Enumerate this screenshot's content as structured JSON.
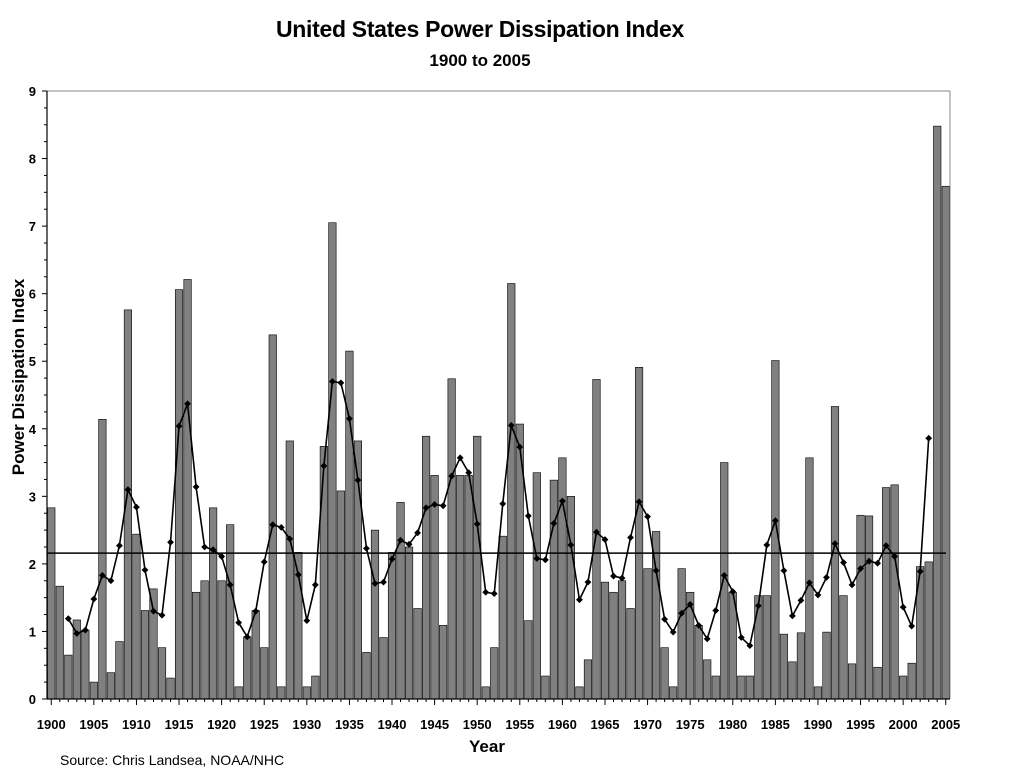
{
  "chart_data": {
    "type": "bar",
    "title": "United States Power Dissipation Index",
    "subtitle": "1900 to 2005",
    "xlabel": "Year",
    "ylabel": "Power Dissipation Index",
    "source": "Source:  Chris Landsea, NOAA/NHC",
    "xlim": [
      1900,
      2005
    ],
    "ylim": [
      0,
      9
    ],
    "grid": false,
    "legend": "none",
    "x_ticks": [
      "1900",
      "1905",
      "1910",
      "1915",
      "1920",
      "1925",
      "1930",
      "1935",
      "1940",
      "1945",
      "1950",
      "1955",
      "1960",
      "1965",
      "1970",
      "1975",
      "1980",
      "1985",
      "1990",
      "1995",
      "2000",
      "2005"
    ],
    "y_ticks": [
      "0",
      "1",
      "2",
      "3",
      "4",
      "5",
      "6",
      "7",
      "8",
      "9"
    ],
    "years": [
      1900,
      1901,
      1902,
      1903,
      1904,
      1905,
      1906,
      1907,
      1908,
      1909,
      1910,
      1911,
      1912,
      1913,
      1914,
      1915,
      1916,
      1917,
      1918,
      1919,
      1920,
      1921,
      1922,
      1923,
      1924,
      1925,
      1926,
      1927,
      1928,
      1929,
      1930,
      1931,
      1932,
      1933,
      1934,
      1935,
      1936,
      1937,
      1938,
      1939,
      1940,
      1941,
      1942,
      1943,
      1944,
      1945,
      1946,
      1947,
      1948,
      1949,
      1950,
      1951,
      1952,
      1953,
      1954,
      1955,
      1956,
      1957,
      1958,
      1959,
      1960,
      1961,
      1962,
      1963,
      1964,
      1965,
      1966,
      1967,
      1968,
      1969,
      1970,
      1971,
      1972,
      1973,
      1974,
      1975,
      1976,
      1977,
      1978,
      1979,
      1980,
      1981,
      1982,
      1983,
      1984,
      1985,
      1986,
      1987,
      1988,
      1989,
      1990,
      1991,
      1992,
      1993,
      1994,
      1995,
      1996,
      1997,
      1998,
      1999,
      2000,
      2001,
      2002,
      2003,
      2004,
      2005
    ],
    "series": [
      {
        "type": "bar",
        "color": "#808080",
        "values": [
          2.83,
          1.67,
          0.65,
          1.17,
          1.02,
          0.25,
          4.14,
          0.39,
          0.85,
          5.76,
          2.44,
          1.31,
          1.63,
          0.76,
          0.31,
          6.06,
          6.21,
          1.58,
          1.75,
          2.83,
          1.75,
          2.58,
          0.18,
          0.92,
          1.31,
          0.76,
          5.39,
          0.18,
          3.82,
          2.17,
          0.18,
          0.34,
          3.74,
          7.05,
          3.08,
          5.15,
          3.82,
          0.69,
          2.5,
          0.91,
          2.17,
          2.91,
          2.25,
          1.34,
          3.89,
          3.31,
          1.09,
          4.74,
          3.31,
          3.31,
          3.89,
          0.18,
          0.76,
          2.41,
          6.15,
          4.07,
          1.16,
          3.35,
          0.34,
          3.24,
          3.57,
          3.0,
          0.18,
          0.58,
          4.73,
          1.73,
          1.58,
          1.75,
          1.34,
          4.91,
          1.93,
          2.48,
          0.76,
          0.18,
          1.93,
          1.58,
          1.09,
          0.58,
          0.34,
          3.5,
          1.58,
          0.34,
          0.34,
          1.53,
          1.53,
          5.01,
          0.96,
          0.55,
          0.98,
          3.57,
          0.18,
          0.99,
          4.33,
          1.53,
          0.52,
          2.72,
          2.71,
          0.47,
          3.13,
          3.17,
          0.34,
          0.53,
          1.96,
          2.03,
          8.48,
          7.59
        ]
      },
      {
        "type": "line",
        "color": "#000000",
        "start_year": 1902,
        "values": [
          1.19,
          0.97,
          1.02,
          1.48,
          1.83,
          1.75,
          2.27,
          3.1,
          2.84,
          1.91,
          1.3,
          1.24,
          2.32,
          4.04,
          4.37,
          3.14,
          2.25,
          2.21,
          2.11,
          1.69,
          1.13,
          0.92,
          1.3,
          2.03,
          2.58,
          2.54,
          2.37,
          1.84,
          1.16,
          1.69,
          3.45,
          4.7,
          4.68,
          4.15,
          3.24,
          2.23,
          1.71,
          1.73,
          2.07,
          2.35,
          2.29,
          2.46,
          2.83,
          2.88,
          2.86,
          3.3,
          3.57,
          3.35,
          2.59,
          1.58,
          1.56,
          2.89,
          4.05,
          3.73,
          2.71,
          2.08,
          2.06,
          2.6,
          2.93,
          2.28,
          1.47,
          1.73,
          2.47,
          2.36,
          1.82,
          1.79,
          2.39,
          2.92,
          2.7,
          1.9,
          1.18,
          0.99,
          1.27,
          1.4,
          1.09,
          0.89,
          1.31,
          1.83,
          1.59,
          0.91,
          0.79,
          1.38,
          2.28,
          2.64,
          1.9,
          1.23,
          1.46,
          1.72,
          1.54,
          1.8,
          2.3,
          2.02,
          1.69,
          1.93,
          2.04,
          2.01,
          2.27,
          2.11,
          1.36,
          1.08,
          1.89,
          3.86
        ]
      },
      {
        "type": "reference_line",
        "name": "",
        "value": 2.16,
        "color": "#000000"
      }
    ]
  }
}
